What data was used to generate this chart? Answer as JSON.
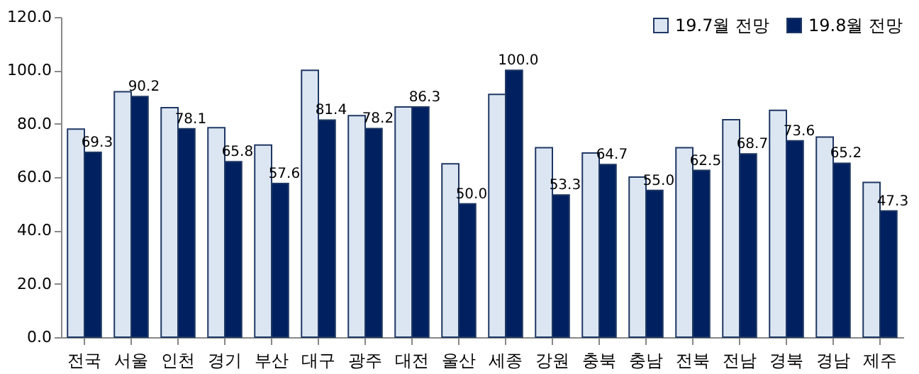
{
  "chart_data": {
    "type": "bar",
    "categories": [
      "전국",
      "서울",
      "인천",
      "경기",
      "부산",
      "대구",
      "광주",
      "대전",
      "울산",
      "세종",
      "강원",
      "충북",
      "충남",
      "전북",
      "전남",
      "경북",
      "경남",
      "제주"
    ],
    "series": [
      {
        "name": "19.7월 전망",
        "color": "#dce6f2",
        "values": [
          78,
          92,
          86,
          78.5,
          72,
          100,
          83,
          86.3,
          65,
          91,
          71,
          69,
          60,
          71,
          81.5,
          85,
          75,
          58
        ]
      },
      {
        "name": "19.8월 전망",
        "color": "#002060",
        "values": [
          69.3,
          90.2,
          78.1,
          65.8,
          57.6,
          81.4,
          78.2,
          86.3,
          50.0,
          100.0,
          53.3,
          64.7,
          55.0,
          62.5,
          68.7,
          73.6,
          65.2,
          47.3
        ],
        "value_labels": [
          "69.3",
          "90.2",
          "78.1",
          "65.8",
          "57.6",
          "81.4",
          "78.2",
          "86.3",
          "50.0",
          "100.0",
          "53.3",
          "64.7",
          "55.0",
          "62.5",
          "68.7",
          "73.6",
          "65.2",
          "47.3"
        ]
      }
    ],
    "ylim": [
      0,
      120
    ],
    "yticks": [
      {
        "value": 0,
        "label": "0.0"
      },
      {
        "value": 20,
        "label": "20.0"
      },
      {
        "value": 40,
        "label": "40.0"
      },
      {
        "value": 60,
        "label": "60.0"
      },
      {
        "value": 80,
        "label": "80.0"
      },
      {
        "value": 100,
        "label": "100.0"
      },
      {
        "value": 120,
        "label": "120.0"
      }
    ],
    "grid": false,
    "legend": "top right"
  }
}
